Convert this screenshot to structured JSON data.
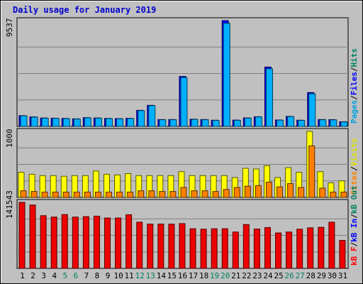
{
  "chart_data": {
    "type": "bar",
    "title": "Daily usage for January 2019",
    "categories": [
      "1",
      "2",
      "3",
      "4",
      "5",
      "6",
      "7",
      "8",
      "9",
      "10",
      "11",
      "12",
      "13",
      "14",
      "15",
      "16",
      "17",
      "18",
      "19",
      "20",
      "21",
      "22",
      "23",
      "24",
      "25",
      "26",
      "27",
      "28",
      "29",
      "30",
      "31"
    ],
    "weekend_days": [
      "5",
      "6",
      "12",
      "13",
      "19",
      "20",
      "26",
      "27"
    ],
    "panels": [
      {
        "ymax_label": "9537",
        "ylim": [
          0,
          9537
        ],
        "legend": [
          {
            "text": "Pages",
            "color": "#00a0e0"
          },
          {
            "text": "/",
            "color": "#000000"
          },
          {
            "text": "Files",
            "color": "#0000ff"
          },
          {
            "text": "/",
            "color": "#000000"
          },
          {
            "text": "Hits",
            "color": "#008060"
          }
        ],
        "series": [
          {
            "name": "Hits",
            "color": "#0000ff",
            "values": [
              970,
              860,
              760,
              740,
              720,
              680,
              790,
              760,
              720,
              700,
              730,
              1450,
              1900,
              620,
              620,
              4500,
              650,
              620,
              560,
              9537,
              570,
              770,
              870,
              5350,
              580,
              900,
              560,
              3050,
              620,
              610,
              420
            ]
          },
          {
            "name": "Files",
            "color": "#00b0ff",
            "values": [
              950,
              840,
              740,
              720,
              700,
              660,
              770,
              740,
              700,
              680,
              710,
              1420,
              1870,
              600,
              600,
              4400,
              630,
              600,
              540,
              9300,
              550,
              750,
              850,
              5200,
              560,
              880,
              540,
              2950,
              600,
              590,
              400
            ]
          },
          {
            "name": "Pages",
            "color": "#00c0ff",
            "values": [
              0,
              0,
              0,
              0,
              0,
              0,
              0,
              0,
              0,
              0,
              0,
              0,
              0,
              0,
              0,
              0,
              0,
              0,
              0,
              0,
              0,
              0,
              0,
              0,
              0,
              0,
              0,
              0,
              0,
              0,
              0
            ]
          }
        ]
      },
      {
        "ymax_label": "1000",
        "ylim": [
          0,
          1000
        ],
        "legend": [
          {
            "text": "Sites",
            "color": "#ff8000"
          },
          {
            "text": "/",
            "color": "#000000"
          },
          {
            "text": "Visits",
            "color": "#e0e000"
          }
        ],
        "series": [
          {
            "name": "Visits",
            "color": "#ffff00",
            "values": [
              380,
              350,
              330,
              330,
              320,
              330,
              330,
              400,
              350,
              340,
              360,
              330,
              330,
              330,
              330,
              390,
              330,
              330,
              330,
              330,
              300,
              440,
              430,
              480,
              300,
              450,
              380,
              1000,
              390,
              220,
              250
            ]
          },
          {
            "name": "Sites",
            "color": "#ff8000",
            "values": [
              100,
              90,
              80,
              80,
              80,
              80,
              80,
              80,
              80,
              80,
              80,
              100,
              100,
              90,
              90,
              150,
              100,
              100,
              90,
              120,
              150,
              170,
              180,
              230,
              160,
              210,
              150,
              780,
              140,
              80,
              80
            ]
          }
        ]
      },
      {
        "ymax_label": "141543",
        "ylim": [
          0,
          141543
        ],
        "legend": [
          {
            "text": "kB F",
            "color": "#ff0000"
          },
          {
            "text": "/",
            "color": "#000000"
          },
          {
            "text": "kB In",
            "color": "#0000ff"
          },
          {
            "text": "/",
            "color": "#000000"
          },
          {
            "text": "kB Out",
            "color": "#008060"
          }
        ],
        "series": [
          {
            "name": "kB F",
            "color": "#ee0000",
            "values": [
              141543,
              135800,
              113000,
              110000,
              115400,
              110000,
              111000,
              112000,
              108000,
              108000,
              115000,
              99000,
              95000,
              95000,
              94800,
              96000,
              85000,
              84000,
              85000,
              85000,
              78000,
              94000,
              84500,
              87500,
              76000,
              78000,
              84000,
              87000,
              88000,
              99000,
              60000
            ]
          }
        ]
      }
    ]
  }
}
